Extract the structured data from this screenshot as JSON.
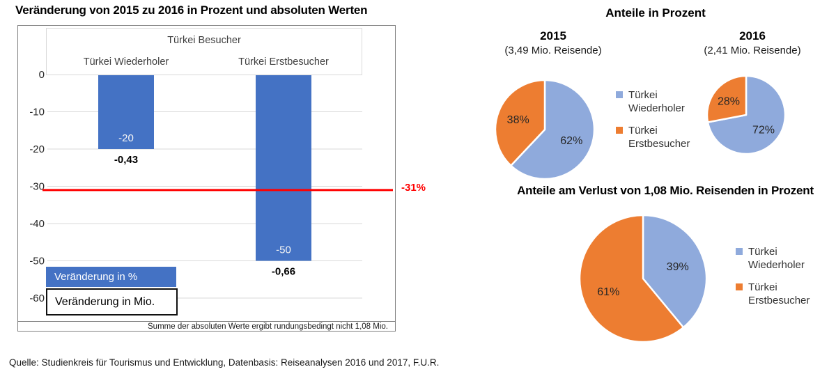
{
  "source": "Quelle: Studienkreis für Tourismus und Entwicklung, Datenbasis: Reiseanalysen 2016 und 2017, F.U.R.",
  "pies_section_title": "Anteile in Prozent",
  "colors": {
    "bar_blue": "#4472C4",
    "pie_blue": "#8FAADC",
    "orange": "#ED7D31",
    "ref_red": "#FF0000"
  },
  "pie_legend": {
    "items": [
      {
        "label": "Türkei Wiederholer",
        "color": "#8FAADC"
      },
      {
        "label": "Türkei Erstbesucher",
        "color": "#ED7D31"
      }
    ]
  },
  "chart_data": [
    {
      "type": "bar",
      "title": "Veränderung von 2015 zu 2016 in Prozent und absoluten Werten",
      "group_label": "Türkei Besucher",
      "categories": [
        "Türkei Wiederholer",
        "Türkei Erstbesucher"
      ],
      "series": [
        {
          "name": "Veränderung in %",
          "values": [
            -20,
            -50
          ],
          "bar_labels": [
            "-20",
            "-50"
          ]
        },
        {
          "name": "Veränderung in Mio.",
          "values": [
            -0.43,
            -0.66
          ],
          "labels": [
            "-0,43",
            "-0,66"
          ]
        }
      ],
      "ylim": [
        -60,
        0
      ],
      "yticks": [
        0,
        -10,
        -20,
        -30,
        -40,
        -50,
        -60
      ],
      "grid": true,
      "bar_color": "#4472C4",
      "ref_line": {
        "value": -31,
        "label": "-31%",
        "color": "#FF0000"
      },
      "note": "Summe der absoluten Werte ergibt rundungsbedingt nicht 1,08 Mio.",
      "legend_position": "inside-bottom-left"
    },
    {
      "type": "pie",
      "title": "2015",
      "subtitle": "(3,49 Mio. Reisende)",
      "slices": [
        {
          "label": "Türkei Wiederholer",
          "value": 62,
          "pct_label": "62%",
          "color": "#8FAADC"
        },
        {
          "label": "Türkei Erstbesucher",
          "value": 38,
          "pct_label": "38%",
          "color": "#ED7D31"
        }
      ]
    },
    {
      "type": "pie",
      "title": "2016",
      "subtitle": "(2,41 Mio. Reisende)",
      "slices": [
        {
          "label": "Türkei Wiederholer",
          "value": 72,
          "pct_label": "72%",
          "color": "#8FAADC"
        },
        {
          "label": "Türkei Erstbesucher",
          "value": 28,
          "pct_label": "28%",
          "color": "#ED7D31"
        }
      ]
    },
    {
      "type": "pie",
      "title": "Anteile am Verlust von 1,08 Mio. Reisenden in Prozent",
      "slices": [
        {
          "label": "Türkei Wiederholer",
          "value": 39,
          "pct_label": "39%",
          "color": "#8FAADC"
        },
        {
          "label": "Türkei Erstbesucher",
          "value": 61,
          "pct_label": "61%",
          "color": "#ED7D31"
        }
      ]
    }
  ]
}
